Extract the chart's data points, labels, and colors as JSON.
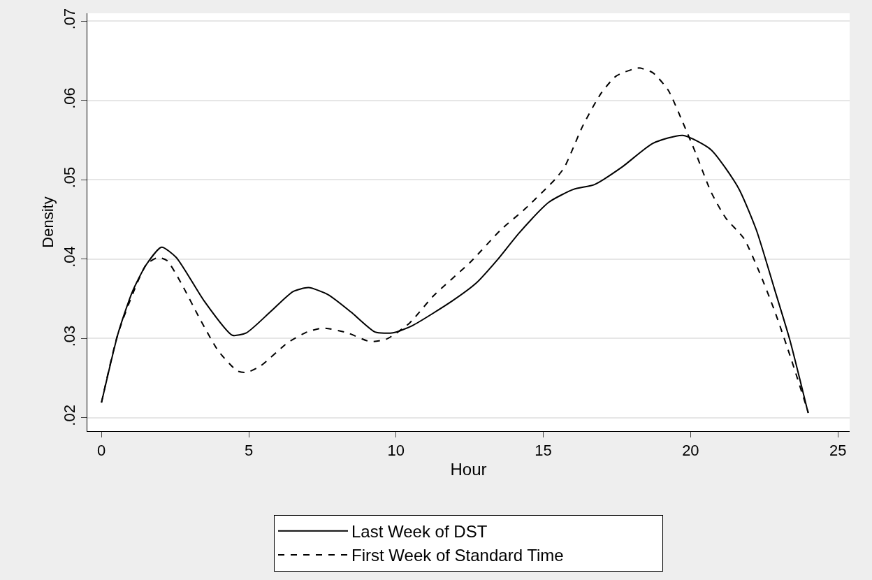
{
  "chart_data": {
    "type": "line",
    "xlabel": "Hour",
    "ylabel": "Density",
    "xlim": [
      -0.48,
      25.4
    ],
    "xticks": [
      0,
      5,
      10,
      15,
      20,
      25
    ],
    "ylim": [
      0.0183,
      0.071
    ],
    "yticks": [
      {
        "value": 0.02,
        "label": ".02"
      },
      {
        "value": 0.03,
        "label": ".03"
      },
      {
        "value": 0.04,
        "label": ".04"
      },
      {
        "value": 0.05,
        "label": ".05"
      },
      {
        "value": 0.06,
        "label": ".06"
      },
      {
        "value": 0.07,
        "label": ".07"
      }
    ],
    "grid": "y",
    "legend": "bottom",
    "series": [
      {
        "name": "Last Week of DST",
        "color": "#000000",
        "line_style": "solid",
        "x": [
          0,
          0.57,
          1.05,
          1.52,
          2.04,
          2.54,
          3.49,
          4.44,
          4.92,
          5.72,
          6.5,
          7.03,
          7.7,
          8.48,
          9.29,
          9.9,
          10.55,
          11.9,
          12.73,
          13.44,
          14.18,
          15.2,
          16.03,
          16.74,
          17.67,
          18.72,
          19.74,
          20.69,
          21.62,
          22.23,
          22.85,
          23.37,
          23.99
        ],
        "values": [
          0.0219,
          0.0307,
          0.0359,
          0.0393,
          0.0415,
          0.0402,
          0.0347,
          0.0304,
          0.0307,
          0.0333,
          0.0359,
          0.0364,
          0.0355,
          0.0333,
          0.0308,
          0.0307,
          0.0316,
          0.0347,
          0.037,
          0.0399,
          0.0433,
          0.0472,
          0.0488,
          0.0494,
          0.0516,
          0.0546,
          0.0556,
          0.0538,
          0.049,
          0.0437,
          0.0362,
          0.0298,
          0.0206
        ]
      },
      {
        "name": "First Week of Standard Time",
        "color": "#000000",
        "line_style": "dashed",
        "x": [
          0,
          0.57,
          1.52,
          1.92,
          2.23,
          2.7,
          3.35,
          3.97,
          4.61,
          4.92,
          5.39,
          6.34,
          6.98,
          7.53,
          8.34,
          9.12,
          9.67,
          10.45,
          11.28,
          12.52,
          13.56,
          14.37,
          15.41,
          15.72,
          16.34,
          16.96,
          17.48,
          18.24,
          18.72,
          19.24,
          19.74,
          20.17,
          20.69,
          21.19,
          21.81,
          22.33,
          22.85,
          23.37,
          24
        ],
        "values": [
          0.0219,
          0.0307,
          0.0393,
          0.0402,
          0.0398,
          0.037,
          0.0324,
          0.0284,
          0.0259,
          0.0257,
          0.0265,
          0.0295,
          0.0308,
          0.0313,
          0.0307,
          0.0296,
          0.0299,
          0.0319,
          0.0354,
          0.0396,
          0.0437,
          0.0463,
          0.0501,
          0.0516,
          0.0568,
          0.0609,
          0.0631,
          0.0641,
          0.0635,
          0.0613,
          0.0572,
          0.0534,
          0.0485,
          0.0452,
          0.0426,
          0.0384,
          0.0335,
          0.0279,
          0.0206
        ]
      }
    ]
  }
}
